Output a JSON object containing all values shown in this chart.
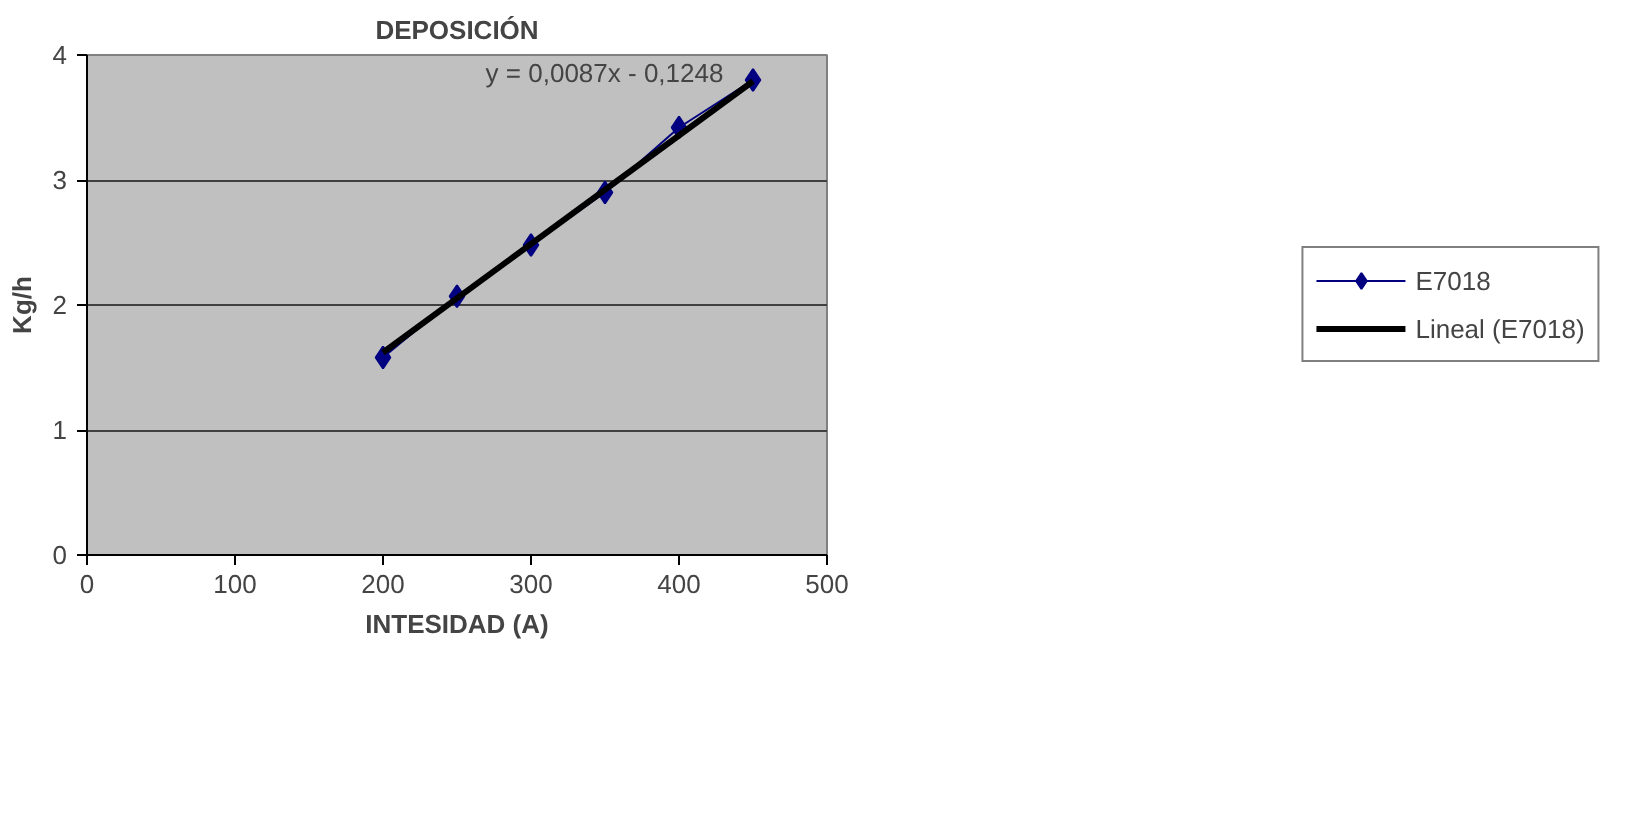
{
  "chart_data": {
    "type": "line",
    "title": "DEPOSICIÓN",
    "xlabel": "INTESIDAD (A)",
    "ylabel": "Kg/h",
    "x": [
      200,
      250,
      300,
      350,
      400,
      450
    ],
    "series": [
      {
        "name": "E7018",
        "color": "#000080",
        "values": [
          1.58,
          2.07,
          2.48,
          2.9,
          3.42,
          3.8
        ],
        "marker": "diamond"
      },
      {
        "name": "Lineal (E7018)",
        "color": "#000000",
        "x": [
          200,
          450
        ],
        "values": [
          1.62,
          3.79
        ],
        "marker": "none"
      }
    ],
    "annotations": [
      "y = 0,0087x - 0,1248"
    ],
    "xlim": [
      0,
      500
    ],
    "xticks": [
      0,
      100,
      200,
      300,
      400,
      500
    ],
    "ylim": [
      0,
      4
    ],
    "yticks": [
      0,
      1,
      2,
      3,
      4
    ],
    "grid": "y",
    "legend": "right",
    "line_style": "solid"
  }
}
